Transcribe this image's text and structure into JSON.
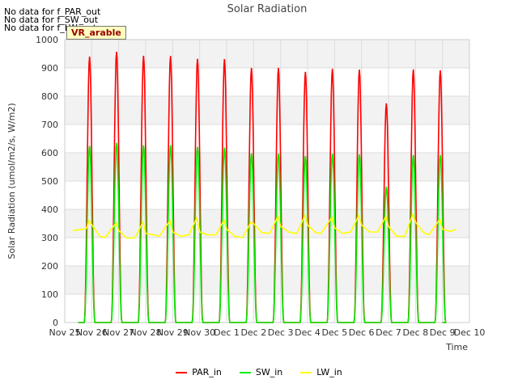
{
  "no_data_messages": [
    "No data for f_PAR_out",
    "No data for f_SW_out",
    "No data for f_LW_out"
  ],
  "site_label": "VR_arable",
  "chart_data": {
    "type": "line",
    "title": "Solar Radiation",
    "xlabel": "Time",
    "ylabel": "Solar Radiation (umol/m2/s, W/m2)",
    "ylim": [
      0,
      1000
    ],
    "yticks": [
      0,
      100,
      200,
      300,
      400,
      500,
      600,
      700,
      800,
      900,
      1000
    ],
    "xlim": [
      0,
      15
    ],
    "xticks": [
      {
        "x": 0,
        "label": "Nov 25"
      },
      {
        "x": 1,
        "label": "Nov 26"
      },
      {
        "x": 2,
        "label": "Nov 27"
      },
      {
        "x": 3,
        "label": "Nov 28"
      },
      {
        "x": 4,
        "label": "Nov 29"
      },
      {
        "x": 5,
        "label": "Nov 30"
      },
      {
        "x": 6,
        "label": "Dec 1"
      },
      {
        "x": 7,
        "label": "Dec 2"
      },
      {
        "x": 8,
        "label": "Dec 3"
      },
      {
        "x": 9,
        "label": "Dec 4"
      },
      {
        "x": 10,
        "label": "Dec 5"
      },
      {
        "x": 11,
        "label": "Dec 6"
      },
      {
        "x": 12,
        "label": "Dec 7"
      },
      {
        "x": 13,
        "label": "Dec 8"
      },
      {
        "x": 14,
        "label": "Dec 9"
      },
      {
        "x": 15,
        "label": "Dec 10"
      }
    ],
    "legend_position": "bottom-center",
    "series": [
      {
        "name": "PAR_in",
        "color": "#ff0000",
        "type": "daily_peaks",
        "peaks": [
          940,
          957,
          943,
          942,
          932,
          931,
          900,
          900,
          886,
          897,
          894,
          775,
          895,
          891
        ]
      },
      {
        "name": "SW_in",
        "color": "#00ee00",
        "type": "daily_peaks",
        "peaks": [
          625,
          635,
          627,
          627,
          621,
          618,
          598,
          597,
          589,
          597,
          595,
          480,
          592,
          592
        ]
      },
      {
        "name": "LW_in",
        "color": "#ffff00",
        "type": "line",
        "x": [
          0.3,
          0.8,
          0.9,
          1.3,
          1.5,
          1.9,
          2.0,
          2.3,
          2.6,
          2.9,
          3.0,
          3.3,
          3.5,
          3.9,
          4.0,
          4.3,
          4.6,
          4.9,
          5.0,
          5.3,
          5.6,
          5.9,
          6.0,
          6.3,
          6.6,
          6.9,
          7.0,
          7.3,
          7.6,
          7.9,
          8.0,
          8.3,
          8.6,
          8.9,
          9.0,
          9.3,
          9.5,
          9.9,
          10.0,
          10.3,
          10.6,
          10.9,
          11.0,
          11.3,
          11.6,
          11.9,
          12.0,
          12.3,
          12.6,
          12.9,
          13.0,
          13.3,
          13.5,
          13.9,
          14.0,
          14.3,
          14.5
        ],
        "y": [
          325,
          332,
          360,
          305,
          300,
          352,
          325,
          298,
          300,
          355,
          315,
          310,
          305,
          360,
          320,
          305,
          310,
          370,
          320,
          310,
          310,
          362,
          330,
          305,
          300,
          355,
          350,
          318,
          315,
          375,
          340,
          320,
          315,
          378,
          345,
          318,
          315,
          372,
          335,
          315,
          320,
          378,
          345,
          320,
          320,
          375,
          340,
          305,
          305,
          382,
          355,
          318,
          310,
          365,
          330,
          322,
          330
        ]
      }
    ]
  }
}
